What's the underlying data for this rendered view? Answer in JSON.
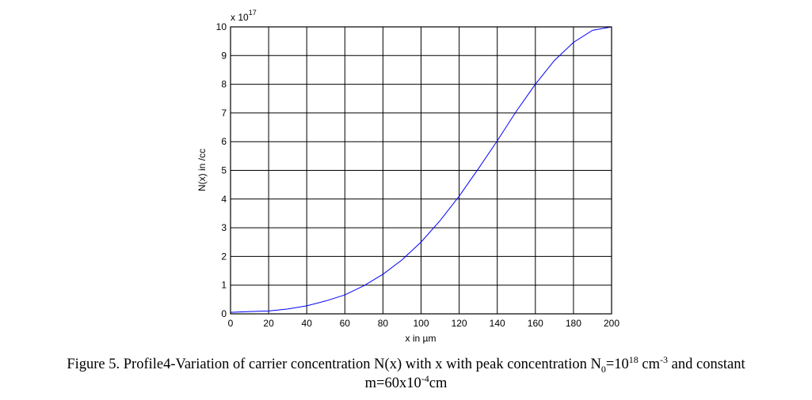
{
  "chart_data": {
    "type": "line",
    "xlabel": "x in µm",
    "ylabel": "N(x) in /cc",
    "y_multiplier": {
      "base": "x 10",
      "exponent": "17"
    },
    "xlim": [
      0,
      200
    ],
    "ylim": [
      0,
      10
    ],
    "xticks": [
      0,
      20,
      40,
      60,
      80,
      100,
      120,
      140,
      160,
      180,
      200
    ],
    "yticks": [
      0,
      1,
      2,
      3,
      4,
      5,
      6,
      7,
      8,
      9,
      10
    ],
    "grid": true,
    "line_color": "#0000ff",
    "series": [
      {
        "x": [
          0,
          10,
          20,
          30,
          40,
          50,
          60,
          70,
          80,
          90,
          100,
          110,
          120,
          130,
          140,
          150,
          160,
          170,
          180,
          190,
          200
        ],
        "y": [
          0.05,
          0.08,
          0.1,
          0.17,
          0.28,
          0.45,
          0.66,
          0.98,
          1.38,
          1.88,
          2.5,
          3.25,
          4.1,
          5.05,
          6.03,
          7.06,
          8.0,
          8.83,
          9.46,
          9.88,
          10.0
        ]
      }
    ]
  },
  "caption": {
    "line1_a": "Figure 5. Profile4-Variation of carrier concentration N(x) with x with peak concentration N",
    "line1_sub": "0",
    "line1_b": "=10",
    "line1_sup1": "18",
    "line1_c": " cm",
    "line1_sup2": "-3",
    "line1_d": " and constant",
    "line2_a": "m=60x10",
    "line2_sup": "-4",
    "line2_b": "cm"
  }
}
